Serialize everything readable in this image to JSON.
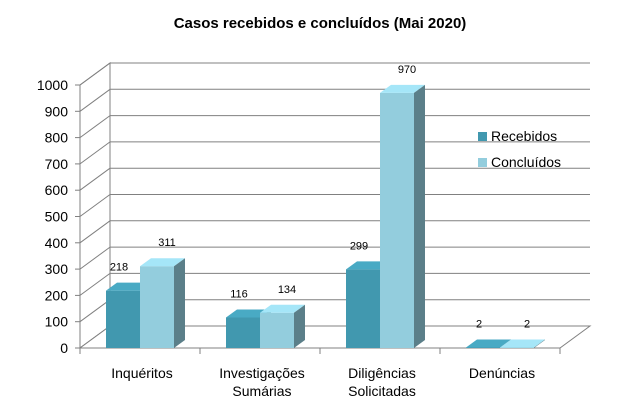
{
  "chart_data": {
    "type": "bar",
    "title": "Casos recebidos e concluídos (Mai 2020)",
    "xlabel": "",
    "ylabel": "",
    "ylim": [
      0,
      1000
    ],
    "yticks": [
      "0",
      "100",
      "200",
      "300",
      "400",
      "500",
      "600",
      "700",
      "800",
      "900",
      "1000"
    ],
    "categories": [
      [
        "Inquéritos"
      ],
      [
        "Investigações",
        "Sumárias"
      ],
      [
        "Diligências",
        "Solicitadas"
      ],
      [
        "Denúncias"
      ]
    ],
    "series": [
      {
        "name": "Recebidos",
        "values": [
          218,
          116,
          299,
          2
        ],
        "labels": [
          "218",
          "116",
          "299",
          "2"
        ],
        "color": "#4198AF"
      },
      {
        "name": "Concluídos",
        "values": [
          311,
          134,
          970,
          2
        ],
        "labels": [
          "311",
          "134",
          "970",
          "2"
        ],
        "color": "#93CDDD"
      }
    ],
    "legend_position": "right",
    "grid": true,
    "style": "3d-clustered-column"
  }
}
